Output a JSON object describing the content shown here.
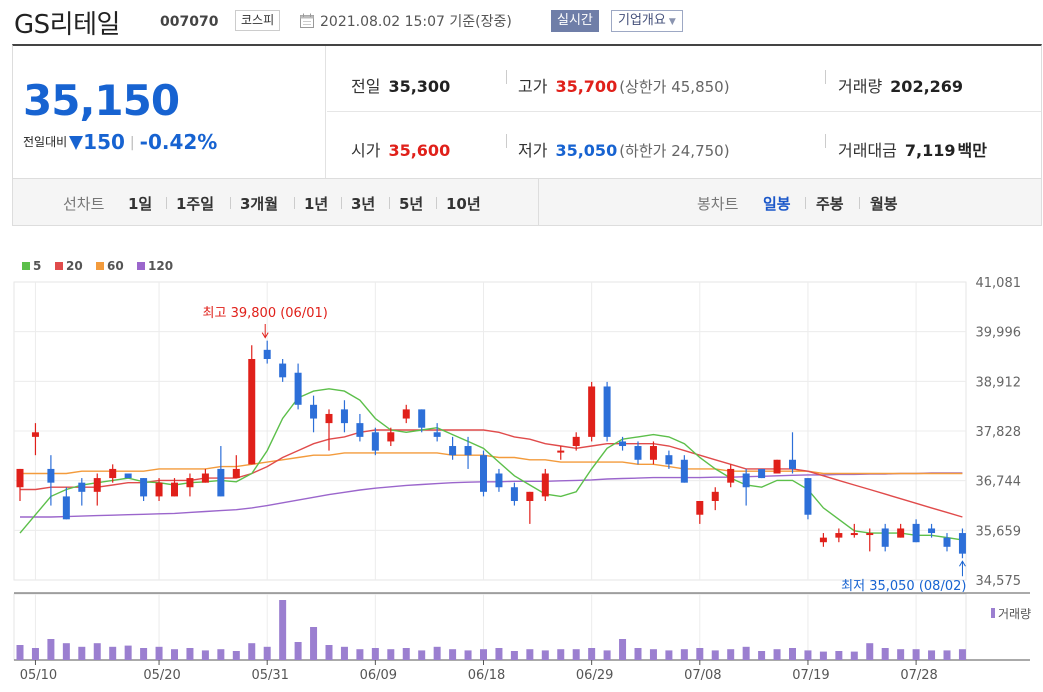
{
  "header": {
    "name": "GS리테일",
    "code": "007070",
    "market": "코스피",
    "timestamp": "2021.08.02 15:07 기준(장중)",
    "realtime_label": "실시간",
    "company_info_label": "기업개요"
  },
  "quote": {
    "price": "35,150",
    "change_label": "전일대비",
    "change_amount": "150",
    "change_percent": "-0.42%",
    "prev_close_label": "전일",
    "prev_close": "35,300",
    "open_label": "시가",
    "open": "35,600",
    "high_label": "고가",
    "high": "35,700",
    "upper_limit": "(상한가 45,850)",
    "low_label": "저가",
    "low": "35,050",
    "lower_limit": "(하한가 24,750)",
    "volume_label": "거래량",
    "volume": "202,269",
    "value_label": "거래대금",
    "value": "7,119",
    "value_unit": "백만"
  },
  "toolbar": {
    "line_chart_label": "선차트",
    "periods": [
      "1일",
      "1주일",
      "3개월",
      "1년",
      "3년",
      "5년",
      "10년"
    ],
    "candle_chart_label": "봉차트",
    "candle_periods": [
      "일봉",
      "주봉",
      "월봉"
    ],
    "candle_selected": "일봉"
  },
  "chart_data": {
    "type": "candlestick",
    "x_ticks": [
      "05/10",
      "05/20",
      "05/31",
      "06/09",
      "06/18",
      "06/29",
      "07/08",
      "07/19",
      "07/28"
    ],
    "y_ticks": [
      "41,081",
      "39,996",
      "38,912",
      "37,828",
      "36,744",
      "35,659",
      "34,575"
    ],
    "ylim": [
      34575,
      41081
    ],
    "up_color": "#e0201a",
    "down_color": "#2d6fd8",
    "legend": [
      {
        "label": "5",
        "color": "#5cbf4a"
      },
      {
        "label": "20",
        "color": "#e04b4b"
      },
      {
        "label": "60",
        "color": "#f39b3c"
      },
      {
        "label": "120",
        "color": "#9b66cc"
      }
    ],
    "volume_label": "거래량",
    "max_annotation": "최고 39,800 (06/01)",
    "min_annotation": "최저 35,050 (08/02)",
    "candles": [
      {
        "o": 36600,
        "h": 37000,
        "l": 36300,
        "c": 37000
      },
      {
        "o": 37700,
        "h": 38000,
        "l": 37300,
        "c": 37800
      },
      {
        "o": 37000,
        "h": 37300,
        "l": 36200,
        "c": 36700
      },
      {
        "o": 36400,
        "h": 36600,
        "l": 35900,
        "c": 35900
      },
      {
        "o": 36700,
        "h": 36800,
        "l": 36200,
        "c": 36500
      },
      {
        "o": 36500,
        "h": 36900,
        "l": 36200,
        "c": 36800
      },
      {
        "o": 36800,
        "h": 37100,
        "l": 36700,
        "c": 37000
      },
      {
        "o": 36900,
        "h": 36900,
        "l": 36800,
        "c": 36800
      },
      {
        "o": 36800,
        "h": 36800,
        "l": 36300,
        "c": 36400
      },
      {
        "o": 36400,
        "h": 36800,
        "l": 36300,
        "c": 36700
      },
      {
        "o": 36400,
        "h": 36800,
        "l": 36400,
        "c": 36700
      },
      {
        "o": 36600,
        "h": 36900,
        "l": 36400,
        "c": 36800
      },
      {
        "o": 36700,
        "h": 37000,
        "l": 36700,
        "c": 36900
      },
      {
        "o": 37000,
        "h": 37500,
        "l": 36400,
        "c": 36400
      },
      {
        "o": 36800,
        "h": 37300,
        "l": 36800,
        "c": 37000
      },
      {
        "o": 37100,
        "h": 39700,
        "l": 37100,
        "c": 39400
      },
      {
        "o": 39600,
        "h": 39800,
        "l": 39300,
        "c": 39400
      },
      {
        "o": 39300,
        "h": 39400,
        "l": 38900,
        "c": 39000
      },
      {
        "o": 39100,
        "h": 39300,
        "l": 38300,
        "c": 38400
      },
      {
        "o": 38400,
        "h": 38600,
        "l": 37800,
        "c": 38100
      },
      {
        "o": 38000,
        "h": 38300,
        "l": 37400,
        "c": 38200
      },
      {
        "o": 38300,
        "h": 38500,
        "l": 37800,
        "c": 38000
      },
      {
        "o": 38000,
        "h": 38200,
        "l": 37600,
        "c": 37700
      },
      {
        "o": 37800,
        "h": 37900,
        "l": 37300,
        "c": 37400
      },
      {
        "o": 37600,
        "h": 37900,
        "l": 37500,
        "c": 37800
      },
      {
        "o": 38100,
        "h": 38400,
        "l": 38000,
        "c": 38300
      },
      {
        "o": 38300,
        "h": 38300,
        "l": 37800,
        "c": 37900
      },
      {
        "o": 37800,
        "h": 38000,
        "l": 37600,
        "c": 37700
      },
      {
        "o": 37500,
        "h": 37700,
        "l": 37200,
        "c": 37300
      },
      {
        "o": 37500,
        "h": 37700,
        "l": 37000,
        "c": 37300
      },
      {
        "o": 37300,
        "h": 37400,
        "l": 36400,
        "c": 36500
      },
      {
        "o": 36900,
        "h": 37000,
        "l": 36500,
        "c": 36600
      },
      {
        "o": 36600,
        "h": 36700,
        "l": 36200,
        "c": 36300
      },
      {
        "o": 36300,
        "h": 36500,
        "l": 35800,
        "c": 36500
      },
      {
        "o": 36400,
        "h": 37000,
        "l": 36300,
        "c": 36900
      },
      {
        "o": 37400,
        "h": 37500,
        "l": 37200,
        "c": 37400
      },
      {
        "o": 37500,
        "h": 37800,
        "l": 37400,
        "c": 37700
      },
      {
        "o": 37700,
        "h": 38900,
        "l": 37600,
        "c": 38800
      },
      {
        "o": 38800,
        "h": 38900,
        "l": 37600,
        "c": 37700
      },
      {
        "o": 37600,
        "h": 37700,
        "l": 37400,
        "c": 37500
      },
      {
        "o": 37500,
        "h": 37600,
        "l": 37100,
        "c": 37200
      },
      {
        "o": 37200,
        "h": 37600,
        "l": 37100,
        "c": 37500
      },
      {
        "o": 37300,
        "h": 37400,
        "l": 37000,
        "c": 37100
      },
      {
        "o": 37200,
        "h": 37300,
        "l": 36700,
        "c": 36700
      },
      {
        "o": 36000,
        "h": 36300,
        "l": 35800,
        "c": 36300
      },
      {
        "o": 36300,
        "h": 36600,
        "l": 36100,
        "c": 36500
      },
      {
        "o": 36700,
        "h": 37100,
        "l": 36600,
        "c": 37000
      },
      {
        "o": 36900,
        "h": 37000,
        "l": 36200,
        "c": 36600
      },
      {
        "o": 37000,
        "h": 37000,
        "l": 36800,
        "c": 36800
      },
      {
        "o": 36900,
        "h": 37200,
        "l": 36900,
        "c": 37200
      },
      {
        "o": 37200,
        "h": 37800,
        "l": 36900,
        "c": 37000
      },
      {
        "o": 36800,
        "h": 36800,
        "l": 35900,
        "c": 36000
      },
      {
        "o": 35400,
        "h": 35600,
        "l": 35300,
        "c": 35500
      },
      {
        "o": 35500,
        "h": 35700,
        "l": 35400,
        "c": 35600
      },
      {
        "o": 35600,
        "h": 35800,
        "l": 35500,
        "c": 35600
      },
      {
        "o": 35600,
        "h": 35700,
        "l": 35200,
        "c": 35600
      },
      {
        "o": 35700,
        "h": 35800,
        "l": 35200,
        "c": 35300
      },
      {
        "o": 35500,
        "h": 35800,
        "l": 35500,
        "c": 35700
      },
      {
        "o": 35800,
        "h": 35900,
        "l": 35400,
        "c": 35400
      },
      {
        "o": 35700,
        "h": 35800,
        "l": 35500,
        "c": 35600
      },
      {
        "o": 35500,
        "h": 35600,
        "l": 35200,
        "c": 35300
      },
      {
        "o": 35600,
        "h": 35700,
        "l": 35050,
        "c": 35150
      }
    ],
    "volumes": [
      0.25,
      0.2,
      0.35,
      0.28,
      0.22,
      0.28,
      0.22,
      0.24,
      0.2,
      0.22,
      0.18,
      0.2,
      0.16,
      0.18,
      0.15,
      0.28,
      0.22,
      1.0,
      0.3,
      0.55,
      0.25,
      0.22,
      0.18,
      0.2,
      0.18,
      0.2,
      0.16,
      0.22,
      0.18,
      0.16,
      0.18,
      0.2,
      0.15,
      0.18,
      0.16,
      0.18,
      0.18,
      0.2,
      0.16,
      0.35,
      0.2,
      0.18,
      0.16,
      0.18,
      0.2,
      0.16,
      0.18,
      0.22,
      0.15,
      0.18,
      0.2,
      0.16,
      0.14,
      0.15,
      0.14,
      0.28,
      0.2,
      0.18,
      0.18,
      0.16,
      0.16,
      0.18
    ],
    "ma5": [
      35600,
      36000,
      36400,
      36550,
      36650,
      36700,
      36750,
      36800,
      36720,
      36700,
      36650,
      36700,
      36720,
      36750,
      36720,
      36900,
      37400,
      38100,
      38550,
      38700,
      38750,
      38700,
      38500,
      38100,
      37850,
      37800,
      37850,
      37900,
      37750,
      37600,
      37450,
      37150,
      36850,
      36650,
      36450,
      36400,
      36500,
      37000,
      37450,
      37650,
      37700,
      37750,
      37700,
      37550,
      37250,
      37000,
      36800,
      36650,
      36600,
      36750,
      36750,
      36550,
      36150,
      35900,
      35650,
      35600,
      35600,
      35600,
      35550,
      35550,
      35500,
      35450
    ],
    "ma20": [
      36550,
      36550,
      36600,
      36600,
      36600,
      36600,
      36650,
      36700,
      36700,
      36750,
      36750,
      36750,
      36800,
      36800,
      36800,
      36900,
      37050,
      37250,
      37400,
      37550,
      37650,
      37700,
      37800,
      37850,
      37850,
      37850,
      37850,
      37850,
      37850,
      37850,
      37850,
      37800,
      37700,
      37650,
      37550,
      37500,
      37450,
      37500,
      37550,
      37550,
      37550,
      37550,
      37500,
      37400,
      37300,
      37200,
      37100,
      37000,
      37000,
      37000,
      37000,
      36950,
      36850,
      36750,
      36650,
      36550,
      36450,
      36350,
      36250,
      36150,
      36050,
      35950
    ],
    "ma60": [
      36900,
      36900,
      36900,
      36900,
      36950,
      36950,
      36950,
      36950,
      36950,
      37000,
      37000,
      37000,
      37000,
      37050,
      37050,
      37100,
      37150,
      37200,
      37250,
      37300,
      37300,
      37350,
      37350,
      37350,
      37350,
      37350,
      37350,
      37350,
      37300,
      37300,
      37300,
      37250,
      37250,
      37200,
      37200,
      37150,
      37150,
      37150,
      37150,
      37150,
      37100,
      37100,
      37050,
      37000,
      37000,
      37000,
      36950,
      36950,
      36950,
      36950,
      36950,
      36950,
      36900,
      36900,
      36900,
      36900,
      36900,
      36900,
      36900,
      36900,
      36900,
      36900
    ],
    "ma120": [
      35950,
      35950,
      35950,
      35960,
      35970,
      35980,
      35990,
      36000,
      36010,
      36020,
      36030,
      36050,
      36070,
      36090,
      36110,
      36150,
      36200,
      36260,
      36320,
      36380,
      36440,
      36490,
      36540,
      36580,
      36610,
      36640,
      36660,
      36680,
      36700,
      36710,
      36720,
      36720,
      36730,
      36730,
      36730,
      36740,
      36750,
      36760,
      36780,
      36790,
      36800,
      36810,
      36810,
      36810,
      36810,
      36820,
      36820,
      36830,
      36840,
      36850,
      36860,
      36870,
      36870,
      36880,
      36880,
      36890,
      36890,
      36900,
      36900,
      36910,
      36910,
      36910
    ]
  }
}
